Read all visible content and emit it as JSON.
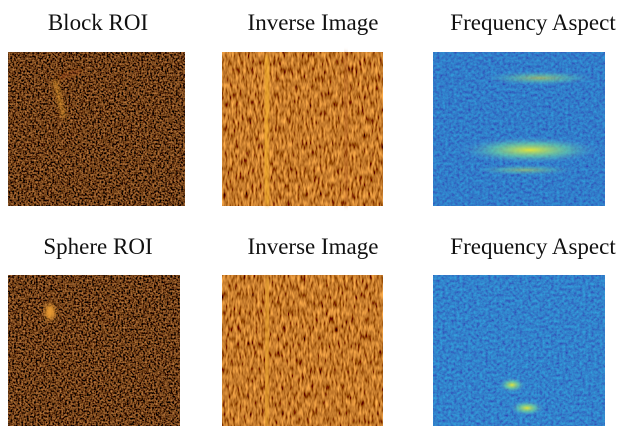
{
  "rows": [
    [
      "Block ROI",
      "Inverse Image",
      "Frequency Aspect"
    ],
    [
      "Sphere ROI",
      "Inverse Image",
      "Frequency Aspect"
    ]
  ]
}
